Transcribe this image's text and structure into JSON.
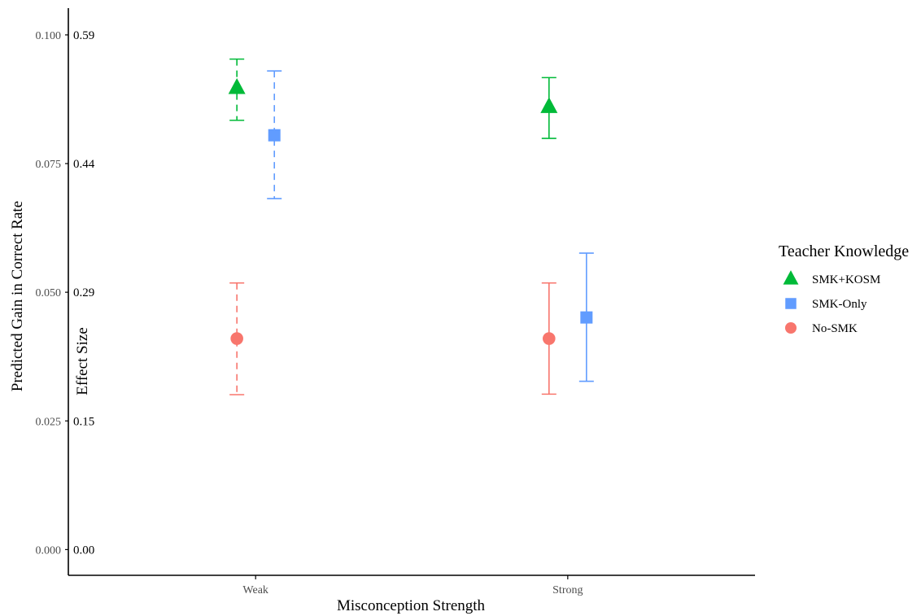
{
  "chart_data": {
    "type": "scatter",
    "title": "",
    "xlabel": "Misconception Strength",
    "ylabel": "Predicted Gain in Correct Rate",
    "ylabel_secondary": "Effect Size",
    "categories": [
      "Weak",
      "Strong"
    ],
    "ylim": [
      -0.005,
      0.1052
    ],
    "y_ticks": [
      0.0,
      0.025,
      0.05,
      0.075,
      0.1
    ],
    "y_tick_labels": [
      "0.000",
      "0.025",
      "0.050",
      "0.075",
      "0.100"
    ],
    "y2_tick_labels": [
      "0.00",
      "0.15",
      "0.29",
      "0.44",
      "0.59"
    ],
    "grid": false,
    "legend": {
      "title": "Teacher Knowledge",
      "placement": "right"
    },
    "series": [
      {
        "name": "SMK+KOSM",
        "color": "#00ba38",
        "marker": "triangle",
        "offset": -0.06,
        "points": [
          {
            "category": "Weak",
            "y": 0.0897,
            "lower": 0.0834,
            "upper": 0.0953,
            "dashed": true
          },
          {
            "category": "Strong",
            "y": 0.086,
            "lower": 0.0799,
            "upper": 0.0917,
            "dashed": false
          }
        ]
      },
      {
        "name": "SMK-Only",
        "color": "#619cff",
        "marker": "square",
        "offset": 0.06,
        "points": [
          {
            "category": "Weak",
            "y": 0.0805,
            "lower": 0.0682,
            "upper": 0.093,
            "dashed": true
          },
          {
            "category": "Strong",
            "y": 0.0451,
            "lower": 0.0327,
            "upper": 0.0576,
            "dashed": false
          }
        ]
      },
      {
        "name": "No-SMK",
        "color": "#f8766d",
        "marker": "circle",
        "offset": -0.06,
        "points": [
          {
            "category": "Weak",
            "y": 0.041,
            "lower": 0.0301,
            "upper": 0.0518,
            "dashed": true
          },
          {
            "category": "Strong",
            "y": 0.041,
            "lower": 0.0302,
            "upper": 0.0518,
            "dashed": false
          }
        ]
      }
    ]
  }
}
